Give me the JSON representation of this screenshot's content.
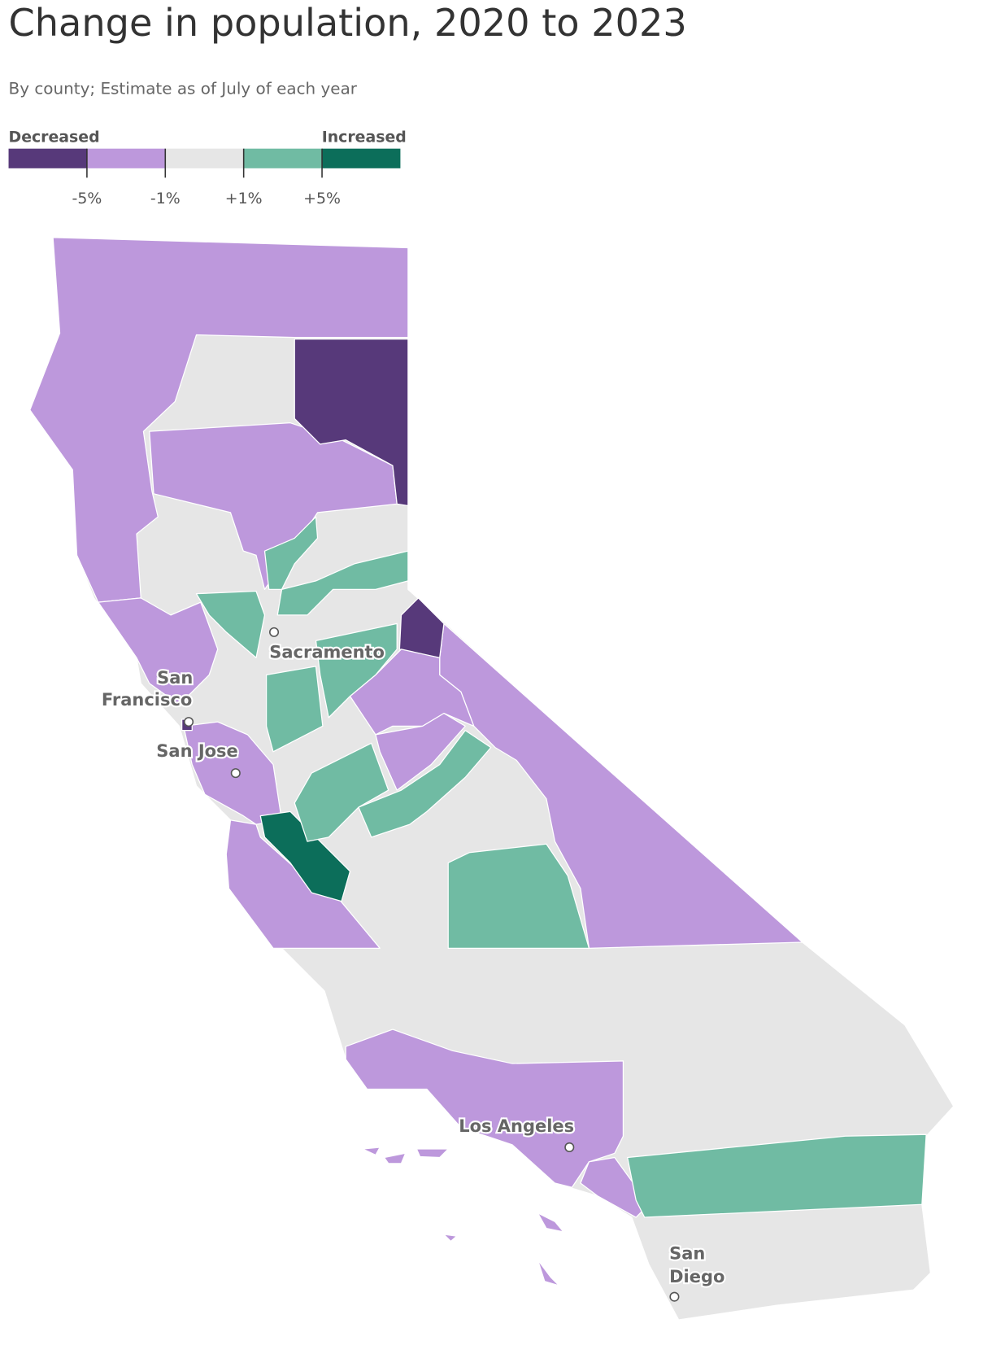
{
  "title": "Change in population, 2020 to 2023",
  "subtitle": "By county; Estimate as of July of each year",
  "legend": {
    "low_label": "Decreased",
    "high_label": "Increased",
    "colors": [
      "#57397a",
      "#bd98dc",
      "#e6e6e6",
      "#70bba3",
      "#0c6e5a"
    ],
    "ticks": [
      {
        "value": -5,
        "label": "-5%"
      },
      {
        "value": -1,
        "label": "-1%"
      },
      {
        "value": 1,
        "label": "+1%"
      },
      {
        "value": 5,
        "label": "+5%"
      }
    ]
  },
  "cities": [
    {
      "name": [
        "Sacramento"
      ]
    },
    {
      "name": [
        "San",
        "Francisco"
      ]
    },
    {
      "name": [
        "San Jose"
      ]
    },
    {
      "name": [
        "Los Angeles"
      ]
    },
    {
      "name": [
        "San",
        "Diego"
      ]
    }
  ]
}
